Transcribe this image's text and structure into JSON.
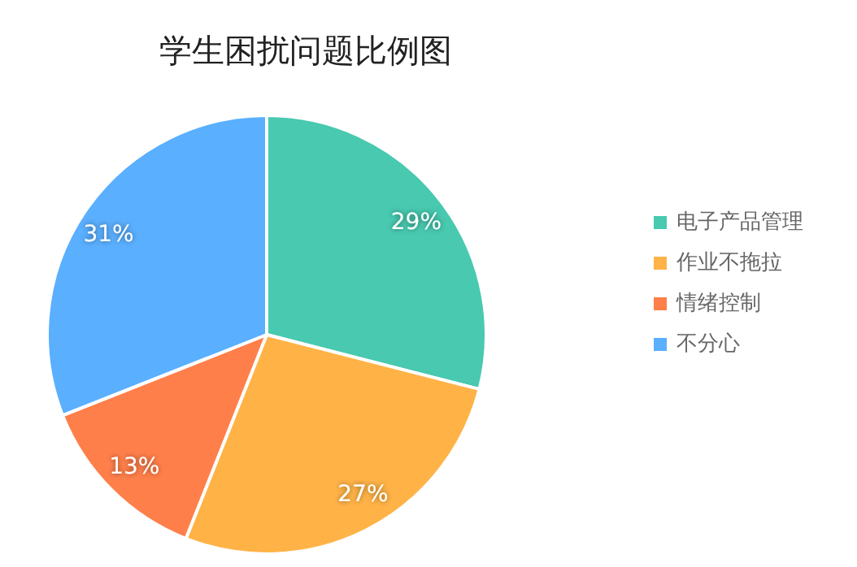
{
  "chart_data": {
    "type": "pie",
    "title": "学生困扰问题比例图",
    "categories": [
      "电子产品管理",
      "作业不拖拉",
      "情绪控制",
      "不分心"
    ],
    "values": [
      29,
      27,
      13,
      31
    ],
    "colors": [
      "#48c9b0",
      "#ffb347",
      "#ff7f4a",
      "#5aafff"
    ],
    "value_labels": [
      "29%",
      "27%",
      "13%",
      "31%"
    ],
    "legend": "right"
  }
}
